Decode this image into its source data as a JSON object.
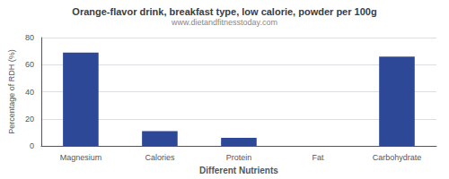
{
  "chart_data": {
    "type": "bar",
    "title": "Orange-flavor drink, breakfast type, low calorie, powder per 100g",
    "subtitle": "www.dietandfitnesstoday.com",
    "categories": [
      "Magnesium",
      "Calories",
      "Protein",
      "Fat",
      "Carbohydrate"
    ],
    "values": [
      69,
      11,
      6,
      0,
      66
    ],
    "color": "#2e4898",
    "xlabel": "Different Nutrients",
    "ylabel": "Percentage of RDH (%)",
    "ylim": [
      0,
      80
    ],
    "yticks": [
      0,
      20,
      40,
      60,
      80
    ],
    "grid": true
  }
}
